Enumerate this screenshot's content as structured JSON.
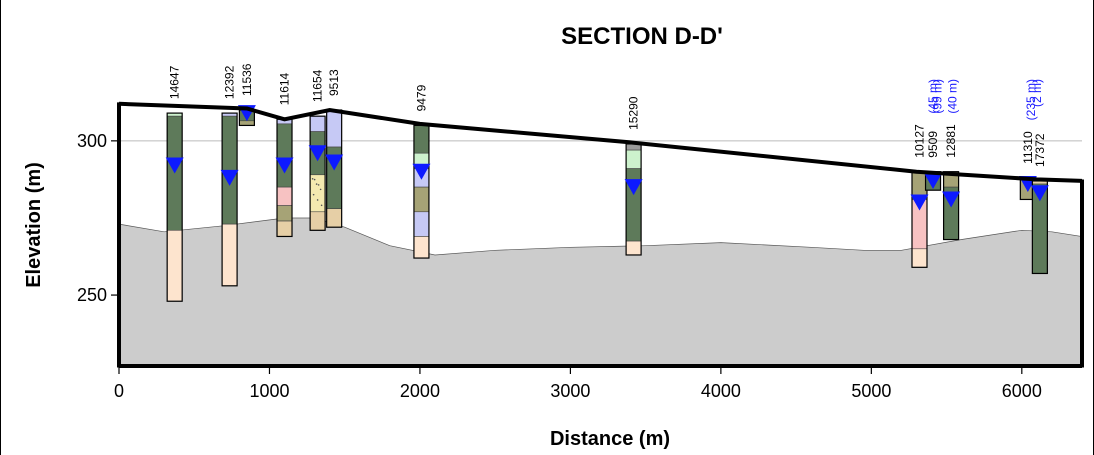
{
  "chart_data": {
    "type": "cross-section",
    "title": "SECTION D-D'",
    "xlabel": "Distance (m)",
    "ylabel": "Elevation (m)",
    "xlim": [
      0,
      6400
    ],
    "ylim": [
      227,
      322
    ],
    "x_ticks": [
      0,
      1000,
      2000,
      3000,
      4000,
      5000,
      6000
    ],
    "x_tick_labels": [
      "0",
      "1000",
      "2000",
      "3000",
      "4000",
      "5000",
      "6000"
    ],
    "y_ticks": [
      250,
      300
    ],
    "y_tick_labels": [
      "250",
      "300"
    ],
    "gridlines_y": [
      300
    ],
    "ground_surface": [
      [
        0,
        312
      ],
      [
        850,
        310.5
      ],
      [
        1100,
        307
      ],
      [
        1400,
        310
      ],
      [
        2000,
        305.5
      ],
      [
        3400,
        299.5
      ],
      [
        5300,
        290
      ],
      [
        6100,
        287.5
      ],
      [
        6400,
        287
      ]
    ],
    "bedrock_surface": [
      [
        0,
        273
      ],
      [
        300,
        270.5
      ],
      [
        700,
        272.5
      ],
      [
        1100,
        275
      ],
      [
        1300,
        275
      ],
      [
        1500,
        272
      ],
      [
        1800,
        266
      ],
      [
        2100,
        263
      ],
      [
        2500,
        264.5
      ],
      [
        3000,
        265.5
      ],
      [
        3500,
        266
      ],
      [
        4000,
        267
      ],
      [
        4600,
        265.5
      ],
      [
        4950,
        264.5
      ],
      [
        5200,
        264.5
      ],
      [
        5600,
        268
      ],
      [
        6000,
        271
      ],
      [
        6200,
        270.5
      ],
      [
        6400,
        269
      ]
    ],
    "colors": {
      "green": "#5e7a5a",
      "peach": "#fde4ce",
      "lightgreen": "#cdf2cd",
      "lavender": "#c6c9f5",
      "pink": "#f7c2c2",
      "khaki": "#a6a376",
      "tan": "#e6cfa6",
      "yellow": "#f4e9b0",
      "gray": "#9a9a9a",
      "bedrock": "#cccccc",
      "water": "#0d1aff",
      "offset_label": "#1a1aff"
    },
    "wells": [
      {
        "id": "14647",
        "x": 370,
        "top": 309,
        "bottom": 248,
        "water_level": 292,
        "layers": [
          {
            "top": 309,
            "bottom": 308,
            "color": "lightgreen"
          },
          {
            "top": 308,
            "bottom": 271,
            "color": "green"
          },
          {
            "top": 271,
            "bottom": 248,
            "color": "peach"
          }
        ]
      },
      {
        "id": "12392",
        "x": 735,
        "top": 309,
        "bottom": 253,
        "water_level": 288,
        "layers": [
          {
            "top": 309,
            "bottom": 308,
            "color": "lavender"
          },
          {
            "top": 308,
            "bottom": 273,
            "color": "green"
          },
          {
            "top": 273,
            "bottom": 253,
            "color": "peach"
          }
        ]
      },
      {
        "id": "11536",
        "x": 850,
        "top": 310,
        "bottom": 305,
        "water_level": 309,
        "layers": [
          {
            "top": 310,
            "bottom": 306.5,
            "color": "green"
          },
          {
            "top": 306.5,
            "bottom": 305,
            "color": "khaki"
          }
        ]
      },
      {
        "id": "11614",
        "x": 1100,
        "top": 307,
        "bottom": 269,
        "water_level": 292,
        "layers": [
          {
            "top": 307,
            "bottom": 305.5,
            "color": "lavender"
          },
          {
            "top": 305.5,
            "bottom": 285,
            "color": "green"
          },
          {
            "top": 285,
            "bottom": 279,
            "color": "pink"
          },
          {
            "top": 279,
            "bottom": 274,
            "color": "khaki"
          },
          {
            "top": 274,
            "bottom": 269,
            "color": "tan"
          }
        ]
      },
      {
        "id": "11654",
        "x": 1320,
        "top": 308,
        "bottom": 271,
        "water_level": 296,
        "layers": [
          {
            "top": 308,
            "bottom": 303,
            "color": "lavender"
          },
          {
            "top": 303,
            "bottom": 289,
            "color": "green"
          },
          {
            "top": 289,
            "bottom": 277,
            "color": "yellow"
          },
          {
            "top": 277,
            "bottom": 271,
            "color": "tan"
          }
        ]
      },
      {
        "id": "9513",
        "x": 1430,
        "top": 310,
        "bottom": 272,
        "water_level": 293,
        "layers": [
          {
            "top": 310,
            "bottom": 298,
            "color": "lavender"
          },
          {
            "top": 298,
            "bottom": 278,
            "color": "green"
          },
          {
            "top": 278,
            "bottom": 272,
            "color": "tan"
          }
        ]
      },
      {
        "id": "9479",
        "x": 2010,
        "top": 305,
        "bottom": 262,
        "water_level": 290,
        "layers": [
          {
            "top": 305,
            "bottom": 296,
            "color": "green"
          },
          {
            "top": 296,
            "bottom": 291,
            "color": "lightgreen"
          },
          {
            "top": 291,
            "bottom": 285,
            "color": "lavender"
          },
          {
            "top": 285,
            "bottom": 277,
            "color": "khaki"
          },
          {
            "top": 277,
            "bottom": 269,
            "color": "lavender"
          },
          {
            "top": 269,
            "bottom": 262,
            "color": "peach"
          }
        ]
      },
      {
        "id": "15290",
        "x": 3420,
        "top": 299,
        "bottom": 263,
        "water_level": 285,
        "layers": [
          {
            "top": 299,
            "bottom": 297,
            "color": "gray"
          },
          {
            "top": 297,
            "bottom": 291,
            "color": "lightgreen"
          },
          {
            "top": 291,
            "bottom": 267.5,
            "color": "green"
          },
          {
            "top": 267.5,
            "bottom": 263,
            "color": "peach"
          }
        ]
      },
      {
        "id": "10127",
        "x": 5320,
        "top": 290,
        "bottom": 259,
        "water_level": 280,
        "layers": [
          {
            "top": 290,
            "bottom": 281,
            "color": "khaki"
          },
          {
            "top": 281,
            "bottom": 265,
            "color": "pink"
          },
          {
            "top": 265,
            "bottom": 259,
            "color": "peach"
          }
        ]
      },
      {
        "id": "9509",
        "x": 5410,
        "top": 290,
        "bottom": 284,
        "water_level": 287,
        "layers": [
          {
            "top": 290,
            "bottom": 284,
            "color": "green"
          }
        ]
      },
      {
        "id": "12881",
        "x": 5530,
        "top": 290,
        "bottom": 268,
        "water_level": 281,
        "layers": [
          {
            "top": 290,
            "bottom": 285,
            "color": "khaki"
          },
          {
            "top": 285,
            "bottom": 268,
            "color": "green"
          }
        ]
      },
      {
        "id": "11310",
        "x": 6040,
        "top": 288,
        "bottom": 281,
        "water_level": 286,
        "layers": [
          {
            "top": 288,
            "bottom": 281,
            "color": "khaki"
          }
        ]
      },
      {
        "id": "17372",
        "x": 6120,
        "top": 287,
        "bottom": 257,
        "water_level": 283,
        "layers": [
          {
            "top": 287,
            "bottom": 286,
            "color": "tan"
          },
          {
            "top": 286,
            "bottom": 257,
            "color": "green"
          }
        ]
      }
    ],
    "offset_labels": [
      {
        "text": "(45 m)",
        "x": 5410
      },
      {
        "text": "(99 m)",
        "x": 5440
      },
      {
        "text": "(40 m)",
        "x": 5540
      },
      {
        "text": "(235 m)",
        "x": 6060
      },
      {
        "text": "(2 m)",
        "x": 6100
      }
    ]
  }
}
